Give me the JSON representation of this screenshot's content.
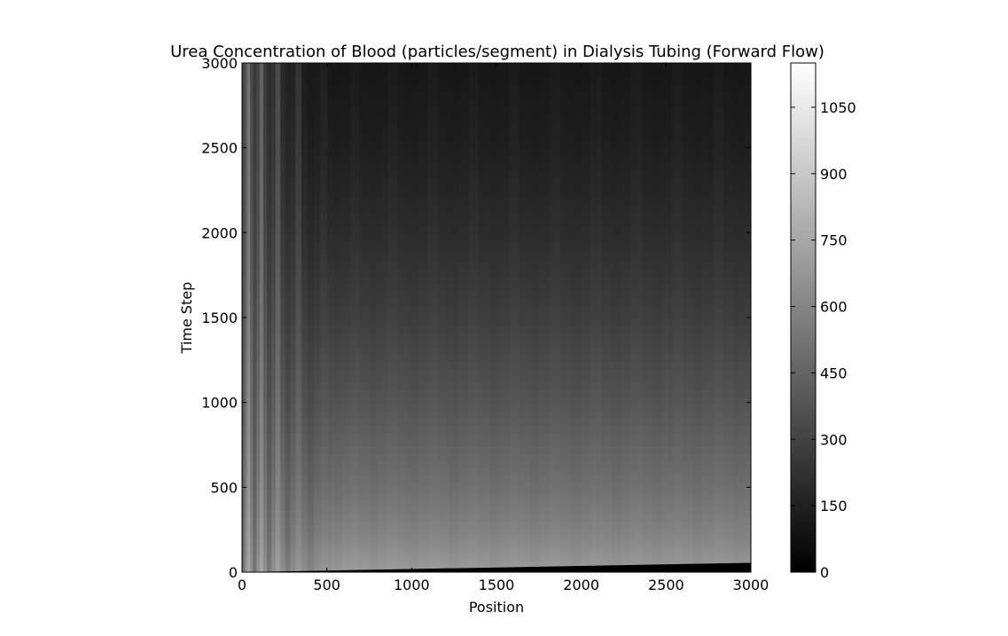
{
  "chart_data": {
    "type": "heatmap",
    "title": "Urea Concentration of Blood (particles/segment) in Dialysis Tubing (Forward Flow)",
    "xlabel": "Position",
    "ylabel": "Time Step",
    "xlim": [
      0,
      3000
    ],
    "ylim": [
      0,
      3000
    ],
    "xticks": [
      0,
      500,
      1000,
      1500,
      2000,
      2500,
      3000
    ],
    "yticks": [
      0,
      500,
      1000,
      1500,
      2000,
      2500,
      3000
    ],
    "colormap": "gray",
    "colorbar": {
      "range": [
        0,
        1150
      ],
      "ticks": [
        0,
        150,
        300,
        450,
        600,
        750,
        900,
        1050
      ]
    },
    "front_line": {
      "x": [
        0,
        3000
      ],
      "y": [
        0,
        55
      ]
    },
    "value_profile": {
      "time_step": [
        0,
        200,
        500,
        1000,
        1500,
        2000,
        2500,
        3000
      ],
      "value": [
        700,
        600,
        500,
        380,
        280,
        200,
        140,
        105
      ]
    },
    "left_edge_peak": 1150
  }
}
